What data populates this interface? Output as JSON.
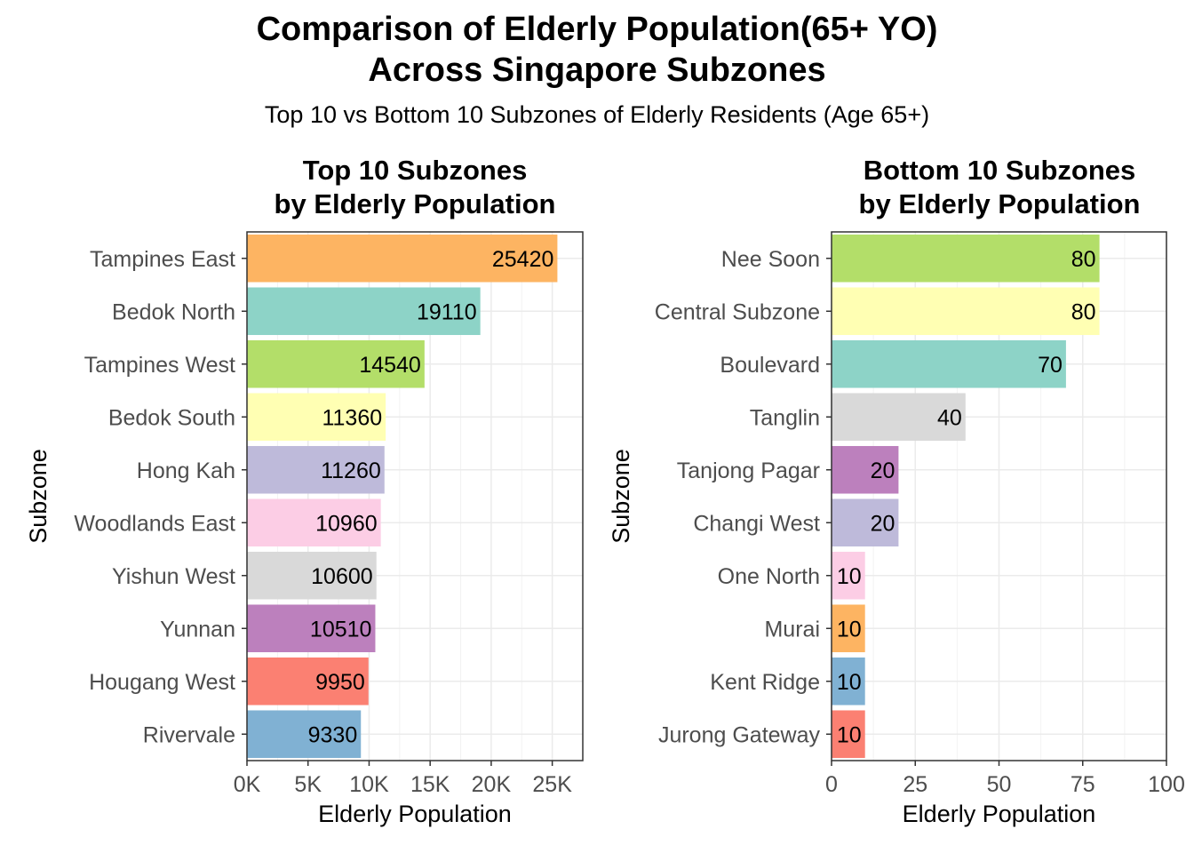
{
  "title_line1": "Comparison of Elderly Population(65+ YO)",
  "title_line2": "Across Singapore Subzones",
  "subtitle": "Top 10 vs Bottom 10 Subzones of Elderly Residents (Age 65+)",
  "chart_data": [
    {
      "type": "bar",
      "orientation": "horizontal",
      "title": [
        "Top 10 Subzones",
        "by Elderly Population"
      ],
      "xlabel": "Elderly Population",
      "ylabel": "Subzone",
      "xlim": [
        0,
        27500
      ],
      "ticks": [
        0,
        5000,
        10000,
        15000,
        20000,
        25000
      ],
      "tick_labels": [
        "0K",
        "5K",
        "10K",
        "15K",
        "20K",
        "25K"
      ],
      "grid": true,
      "bars": [
        {
          "category": "Tampines East",
          "value": 25420,
          "label": "25420",
          "color": "#FDB462"
        },
        {
          "category": "Bedok North",
          "value": 19110,
          "label": "19110",
          "color": "#8DD3C7"
        },
        {
          "category": "Tampines West",
          "value": 14540,
          "label": "14540",
          "color": "#B3DE69"
        },
        {
          "category": "Bedok South",
          "value": 11360,
          "label": "11360",
          "color": "#FFFFB3"
        },
        {
          "category": "Hong Kah",
          "value": 11260,
          "label": "11260",
          "color": "#BEBADA"
        },
        {
          "category": "Woodlands East",
          "value": 10960,
          "label": "10960",
          "color": "#FCCDE5"
        },
        {
          "category": "Yishun West",
          "value": 10600,
          "label": "10600",
          "color": "#D9D9D9"
        },
        {
          "category": "Yunnan",
          "value": 10510,
          "label": "10510",
          "color": "#BC80BD"
        },
        {
          "category": "Hougang West",
          "value": 9950,
          "label": "9950",
          "color": "#FB8072"
        },
        {
          "category": "Rivervale",
          "value": 9330,
          "label": "9330",
          "color": "#80B1D3"
        }
      ]
    },
    {
      "type": "bar",
      "orientation": "horizontal",
      "title": [
        "Bottom 10 Subzones",
        "by Elderly Population"
      ],
      "xlabel": "Elderly Population",
      "ylabel": "Subzone",
      "xlim": [
        0,
        100
      ],
      "ticks": [
        0,
        25,
        50,
        75,
        100
      ],
      "tick_labels": [
        "0",
        "25",
        "50",
        "75",
        "100"
      ],
      "grid": true,
      "bars": [
        {
          "category": "Nee Soon",
          "value": 80,
          "label": "80",
          "color": "#B3DE69"
        },
        {
          "category": "Central Subzone",
          "value": 80,
          "label": "80",
          "color": "#FFFFB3"
        },
        {
          "category": "Boulevard",
          "value": 70,
          "label": "70",
          "color": "#8DD3C7"
        },
        {
          "category": "Tanglin",
          "value": 40,
          "label": "40",
          "color": "#D9D9D9"
        },
        {
          "category": "Tanjong Pagar",
          "value": 20,
          "label": "20",
          "color": "#BC80BD"
        },
        {
          "category": "Changi West",
          "value": 20,
          "label": "20",
          "color": "#BEBADA"
        },
        {
          "category": "One North",
          "value": 10,
          "label": "10",
          "color": "#FCCDE5"
        },
        {
          "category": "Murai",
          "value": 10,
          "label": "10",
          "color": "#FDB462"
        },
        {
          "category": "Kent Ridge",
          "value": 10,
          "label": "10",
          "color": "#80B1D3"
        },
        {
          "category": "Jurong Gateway",
          "value": 10,
          "label": "10",
          "color": "#FB8072"
        }
      ]
    }
  ]
}
